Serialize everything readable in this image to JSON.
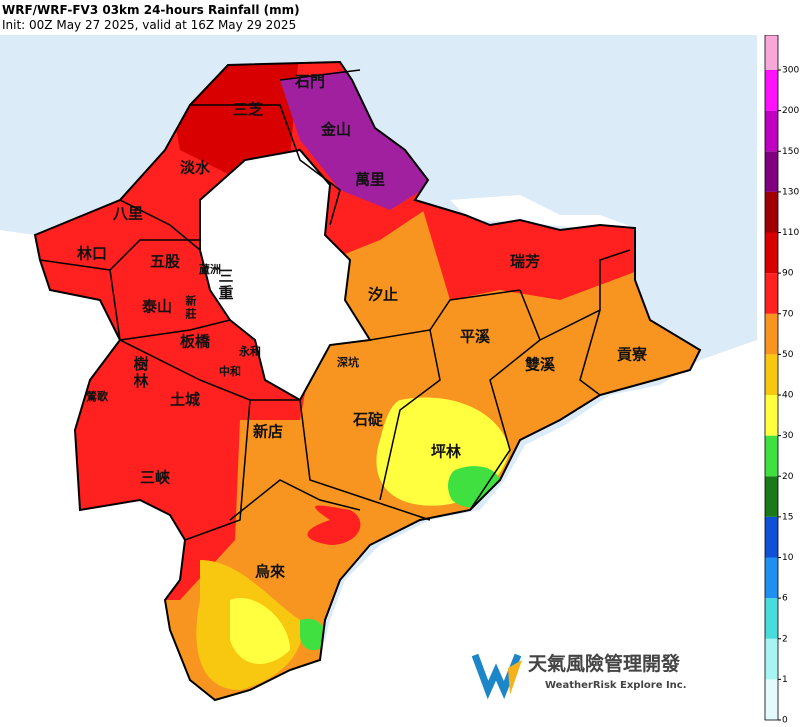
{
  "header": {
    "title": "WRF/WRF-FV3 03km 24-hours Rainfall (mm)",
    "subtitle": "Init: 00Z May 27 2025, valid at 16Z May 29 2025"
  },
  "districts": [
    {
      "label": "石門"
    },
    {
      "label": "三芝"
    },
    {
      "label": "金山"
    },
    {
      "label": "淡水"
    },
    {
      "label": "萬里"
    },
    {
      "label": "八里"
    },
    {
      "label": "林口"
    },
    {
      "label": "五股"
    },
    {
      "label": "瑞芳"
    },
    {
      "label": "蘆洲"
    },
    {
      "label": "三重"
    },
    {
      "label": "泰山"
    },
    {
      "label": "汐止"
    },
    {
      "label": "新莊"
    },
    {
      "label": "平溪"
    },
    {
      "label": "板橋"
    },
    {
      "label": "永和"
    },
    {
      "label": "深坑"
    },
    {
      "label": "雙溪"
    },
    {
      "label": "貢寮"
    },
    {
      "label": "中和"
    },
    {
      "label": "樹林"
    },
    {
      "label": "鶯歌"
    },
    {
      "label": "土城"
    },
    {
      "label": "石碇"
    },
    {
      "label": "新店"
    },
    {
      "label": "坪林"
    },
    {
      "label": "三峽"
    },
    {
      "label": "烏來"
    }
  ],
  "colorbar": {
    "ticks": [
      0,
      1,
      2,
      6,
      10,
      15,
      20,
      30,
      40,
      50,
      70,
      90,
      110,
      130,
      150,
      200,
      300
    ],
    "colors": [
      "#e4fbfb",
      "#a8f4f4",
      "#48dcdc",
      "#2090f0",
      "#1050d8",
      "#1a7a1a",
      "#40e040",
      "#ffff40",
      "#f8c810",
      "#f89420",
      "#ff2020",
      "#d80000",
      "#a00000",
      "#800080",
      "#c000c0",
      "#ff10ff",
      "#f8a8d8"
    ]
  },
  "logo": {
    "name": "天氣風險管理開發",
    "subtitle": "WeatherRisk Explore Inc."
  }
}
